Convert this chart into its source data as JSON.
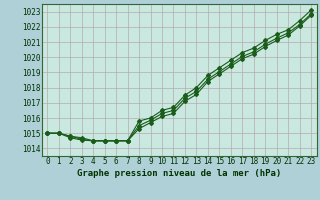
{
  "background_color": "#b0d0d8",
  "plot_bg_color": "#c8e8e0",
  "grid_color": "#b8a8b0",
  "line_color": "#1a5c1a",
  "x_labels": [
    "0",
    "1",
    "2",
    "3",
    "4",
    "5",
    "6",
    "7",
    "8",
    "9",
    "10",
    "11",
    "12",
    "13",
    "14",
    "15",
    "16",
    "17",
    "18",
    "19",
    "20",
    "21",
    "22",
    "23"
  ],
  "ylim": [
    1013.5,
    1023.5
  ],
  "yticks": [
    1014,
    1015,
    1016,
    1017,
    1018,
    1019,
    1020,
    1021,
    1022,
    1023
  ],
  "line1": [
    1015.0,
    1015.0,
    1014.8,
    1014.7,
    1014.5,
    1014.5,
    1014.5,
    1014.5,
    1015.8,
    1016.0,
    1016.5,
    1016.7,
    1017.5,
    1018.0,
    1018.8,
    1019.3,
    1019.8,
    1020.3,
    1020.6,
    1021.1,
    1021.5,
    1021.8,
    1022.4,
    1023.1
  ],
  "line2": [
    1015.0,
    1015.0,
    1014.7,
    1014.55,
    1014.5,
    1014.5,
    1014.5,
    1014.5,
    1015.5,
    1015.85,
    1016.3,
    1016.5,
    1017.3,
    1017.75,
    1018.55,
    1019.05,
    1019.55,
    1020.05,
    1020.35,
    1020.85,
    1021.25,
    1021.6,
    1022.15,
    1022.85
  ],
  "line3": [
    1015.0,
    1015.0,
    1014.8,
    1014.6,
    1014.5,
    1014.5,
    1014.5,
    1014.5,
    1015.3,
    1015.7,
    1016.1,
    1016.3,
    1017.1,
    1017.55,
    1018.4,
    1018.9,
    1019.4,
    1019.9,
    1020.2,
    1020.7,
    1021.1,
    1021.45,
    1022.05,
    1022.75
  ],
  "xlabel": "Graphe pression niveau de la mer (hPa)",
  "label_fontsize": 6.5,
  "tick_fontsize": 5.5,
  "figsize": [
    3.2,
    2.0
  ],
  "dpi": 100
}
